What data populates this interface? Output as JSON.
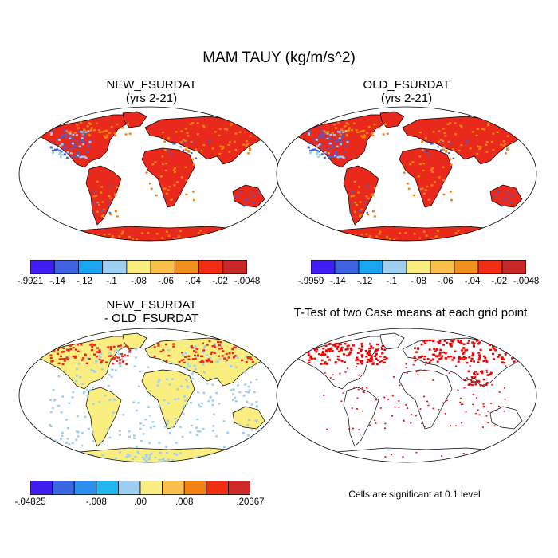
{
  "figure": {
    "title": "MAM TAUY (kg/m/s^2)",
    "footnote": "Cells are significant at 0.1 level"
  },
  "panels": [
    {
      "id": "new",
      "title_line1": "NEW_FSURDAT",
      "title_line2": "(yrs 2-21)"
    },
    {
      "id": "old",
      "title_line1": "OLD_FSURDAT",
      "title_line2": "(yrs 2-21)"
    },
    {
      "id": "diff",
      "title_line1": "NEW_FSURDAT",
      "title_line2": "- OLD_FSURDAT"
    },
    {
      "id": "ttest",
      "title_line1": "T-Test of two Case means at each grid point"
    }
  ],
  "colorbars": {
    "new": {
      "colors": [
        "#3e1ef0",
        "#3d63e0",
        "#18a6f0",
        "#9ecff0",
        "#fbee80",
        "#fbc04a",
        "#f2901e",
        "#f22e12",
        "#c82828"
      ],
      "labels": [
        "-.9921",
        "-.14",
        "-.12",
        "-.1",
        "-.08",
        "-.06",
        "-.04",
        "-.02",
        "-.0048"
      ]
    },
    "old": {
      "colors": [
        "#3e1ef0",
        "#3d63e0",
        "#18a6f0",
        "#9ecff0",
        "#fbee80",
        "#fbc04a",
        "#f2901e",
        "#f22e12",
        "#c82828"
      ],
      "labels": [
        "-.9959",
        "-.14",
        "-.12",
        "-.1",
        "-.08",
        "-.06",
        "-.04",
        "-.02",
        "-.0048"
      ]
    },
    "diff": {
      "colors": [
        "#3e1ef0",
        "#3a66e4",
        "#2a8ff0",
        "#1fb8f0",
        "#9ecff0",
        "#fbee80",
        "#fbc04a",
        "#f7820f",
        "#f22e12",
        "#d02828"
      ],
      "labels": [
        "-.04825",
        "-.008",
        ".00",
        ".008",
        ".20367"
      ]
    }
  },
  "map_colors": {
    "new": {
      "land": "#e8291c",
      "highlight": "#f7820f",
      "cool": "#3d63e0",
      "pale": "#9ecff0",
      "coast": "#000000"
    },
    "old": {
      "land": "#e8291c",
      "highlight": "#f7820f",
      "cool": "#3d63e0",
      "pale": "#9ecff0",
      "coast": "#000000"
    },
    "diff": {
      "land": "#fbee80",
      "cool": "#9ecff0",
      "warm": "#e8291c"
    },
    "ttest": {
      "sig": "#ee0000",
      "coast": "#000000"
    }
  }
}
